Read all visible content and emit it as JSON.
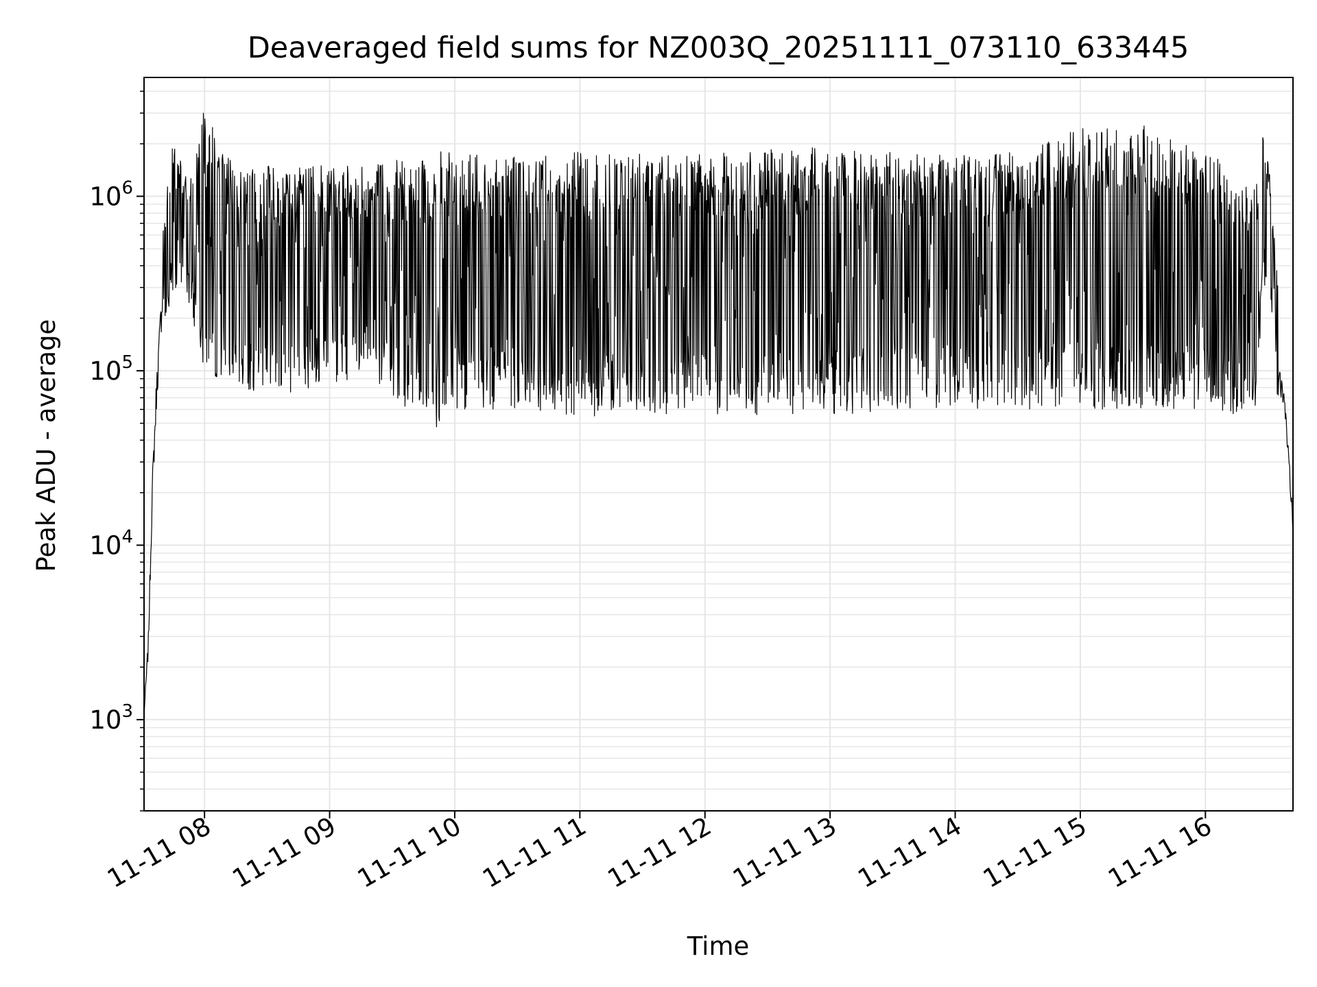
{
  "chart_data": {
    "type": "line",
    "title": "Deaveraged field sums for NZ003Q_20251111_073110_633445",
    "xlabel": "Time",
    "ylabel": "Peak ADU - average",
    "yscale": "log",
    "grid": true,
    "grid_minor": true,
    "legend": "none",
    "line_color": "#000000",
    "grid_color": "#e6e6e6",
    "xlim": [
      "2025-11-11T07:31",
      "2025-11-11T16:42"
    ],
    "ylim": [
      300,
      4800000
    ],
    "x_ticks": [
      {
        "value": "2025-11-11T08:00",
        "label": "11-11 08"
      },
      {
        "value": "2025-11-11T09:00",
        "label": "11-11 09"
      },
      {
        "value": "2025-11-11T10:00",
        "label": "11-11 10"
      },
      {
        "value": "2025-11-11T11:00",
        "label": "11-11 11"
      },
      {
        "value": "2025-11-11T12:00",
        "label": "11-11 12"
      },
      {
        "value": "2025-11-11T13:00",
        "label": "11-11 13"
      },
      {
        "value": "2025-11-11T14:00",
        "label": "11-11 14"
      },
      {
        "value": "2025-11-11T15:00",
        "label": "11-11 15"
      },
      {
        "value": "2025-11-11T16:00",
        "label": "11-11 16"
      }
    ],
    "y_ticks": [
      {
        "value": 1000,
        "label": "10^3"
      },
      {
        "value": 10000,
        "label": "10^4"
      },
      {
        "value": 100000,
        "label": "10^5"
      },
      {
        "value": 1000000,
        "label": "10^6"
      }
    ],
    "series": [
      {
        "envelope": [
          {
            "x": "2025-11-11T07:31",
            "low": 1000,
            "high": 1200
          },
          {
            "x": "2025-11-11T07:33",
            "low": 1800,
            "high": 4000
          },
          {
            "x": "2025-11-11T07:35",
            "low": 13000,
            "high": 40000
          },
          {
            "x": "2025-11-11T07:37",
            "low": 40000,
            "high": 170000
          },
          {
            "x": "2025-11-11T07:40",
            "low": 150000,
            "high": 680000
          },
          {
            "x": "2025-11-11T07:45",
            "low": 300000,
            "high": 2300000
          },
          {
            "x": "2025-11-11T07:52",
            "low": 250000,
            "high": 1200000
          },
          {
            "x": "2025-11-11T08:00",
            "low": 100000,
            "high": 3200000
          },
          {
            "x": "2025-11-11T08:15",
            "low": 75000,
            "high": 1400000
          },
          {
            "x": "2025-11-11T08:30",
            "low": 75000,
            "high": 1500000
          },
          {
            "x": "2025-11-11T08:45",
            "low": 75000,
            "high": 1500000
          },
          {
            "x": "2025-11-11T09:00",
            "low": 80000,
            "high": 1500000
          },
          {
            "x": "2025-11-11T09:20",
            "low": 90000,
            "high": 1500000
          },
          {
            "x": "2025-11-11T09:40",
            "low": 55000,
            "high": 1700000
          },
          {
            "x": "2025-11-11T09:50",
            "low": 45000,
            "high": 1800000
          },
          {
            "x": "2025-11-11T10:00",
            "low": 60000,
            "high": 1800000
          },
          {
            "x": "2025-11-11T10:30",
            "low": 60000,
            "high": 1700000
          },
          {
            "x": "2025-11-11T11:00",
            "low": 55000,
            "high": 1800000
          },
          {
            "x": "2025-11-11T11:30",
            "low": 55000,
            "high": 1800000
          },
          {
            "x": "2025-11-11T12:00",
            "low": 55000,
            "high": 1800000
          },
          {
            "x": "2025-11-11T12:30",
            "low": 55000,
            "high": 1900000
          },
          {
            "x": "2025-11-11T13:00",
            "low": 55000,
            "high": 1900000
          },
          {
            "x": "2025-11-11T13:30",
            "low": 60000,
            "high": 1800000
          },
          {
            "x": "2025-11-11T14:00",
            "low": 60000,
            "high": 1700000
          },
          {
            "x": "2025-11-11T14:30",
            "low": 60000,
            "high": 1800000
          },
          {
            "x": "2025-11-11T15:00",
            "low": 60000,
            "high": 2500000
          },
          {
            "x": "2025-11-11T15:30",
            "low": 60000,
            "high": 2600000
          },
          {
            "x": "2025-11-11T16:00",
            "low": 60000,
            "high": 1800000
          },
          {
            "x": "2025-11-11T16:25",
            "low": 50000,
            "high": 1200000
          },
          {
            "x": "2025-11-11T16:27",
            "low": 300000,
            "high": 2800000
          },
          {
            "x": "2025-11-11T16:31",
            "low": 300000,
            "high": 1300000
          },
          {
            "x": "2025-11-11T16:35",
            "low": 50000,
            "high": 280000
          },
          {
            "x": "2025-11-11T16:38",
            "low": 50000,
            "high": 90000
          },
          {
            "x": "2025-11-11T16:42",
            "low": 10000,
            "high": 20000
          }
        ]
      }
    ]
  }
}
